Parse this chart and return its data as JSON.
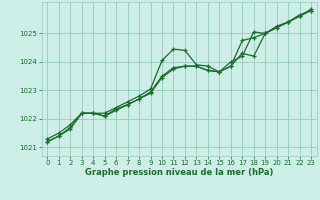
{
  "background_color": "#cceee6",
  "grid_color": "#99ccbb",
  "line_color": "#1a6e30",
  "xlabel": "Graphe pression niveau de la mer (hPa)",
  "xlim": [
    -0.5,
    23.5
  ],
  "ylim": [
    1020.7,
    1026.1
  ],
  "yticks": [
    1021,
    1022,
    1023,
    1024,
    1025
  ],
  "xticks": [
    0,
    1,
    2,
    3,
    4,
    5,
    6,
    7,
    8,
    9,
    10,
    11,
    12,
    13,
    14,
    15,
    16,
    17,
    18,
    19,
    20,
    21,
    22,
    23
  ],
  "series1_x": [
    0,
    1,
    2,
    3,
    4,
    5,
    6,
    7,
    8,
    9,
    10,
    11,
    12,
    13,
    14,
    15,
    16,
    17,
    18,
    19,
    20,
    21,
    22,
    23
  ],
  "series1_y": [
    1021.3,
    1021.5,
    1021.8,
    1022.2,
    1022.2,
    1022.2,
    1022.4,
    1022.6,
    1022.8,
    1023.05,
    1024.05,
    1024.45,
    1024.4,
    1023.9,
    1023.85,
    1023.65,
    1023.85,
    1024.3,
    1024.2,
    1025.0,
    1025.2,
    1025.4,
    1025.6,
    1025.85
  ],
  "series2_x": [
    0,
    1,
    2,
    3,
    4,
    5,
    6,
    7,
    8,
    9,
    10,
    11,
    12,
    13,
    14,
    15,
    16,
    17,
    18,
    19,
    20,
    21,
    22,
    23
  ],
  "series2_y": [
    1021.2,
    1021.4,
    1021.7,
    1022.2,
    1022.2,
    1022.1,
    1022.35,
    1022.5,
    1022.7,
    1022.95,
    1023.5,
    1023.8,
    1023.85,
    1023.85,
    1023.7,
    1023.65,
    1023.85,
    1024.75,
    1024.85,
    1025.0,
    1025.25,
    1025.4,
    1025.65,
    1025.8
  ],
  "series3_x": [
    0,
    1,
    2,
    3,
    4,
    5,
    6,
    7,
    8,
    9,
    10,
    11,
    12,
    13,
    14,
    15,
    16,
    17,
    18,
    19,
    20,
    21,
    22,
    23
  ],
  "series3_y": [
    1021.2,
    1021.4,
    1021.65,
    1022.2,
    1022.2,
    1022.1,
    1022.3,
    1022.5,
    1022.7,
    1022.9,
    1023.45,
    1023.75,
    1023.85,
    1023.85,
    1023.7,
    1023.65,
    1024.0,
    1024.2,
    1025.05,
    1025.0,
    1025.2,
    1025.4,
    1025.6,
    1025.8
  ]
}
